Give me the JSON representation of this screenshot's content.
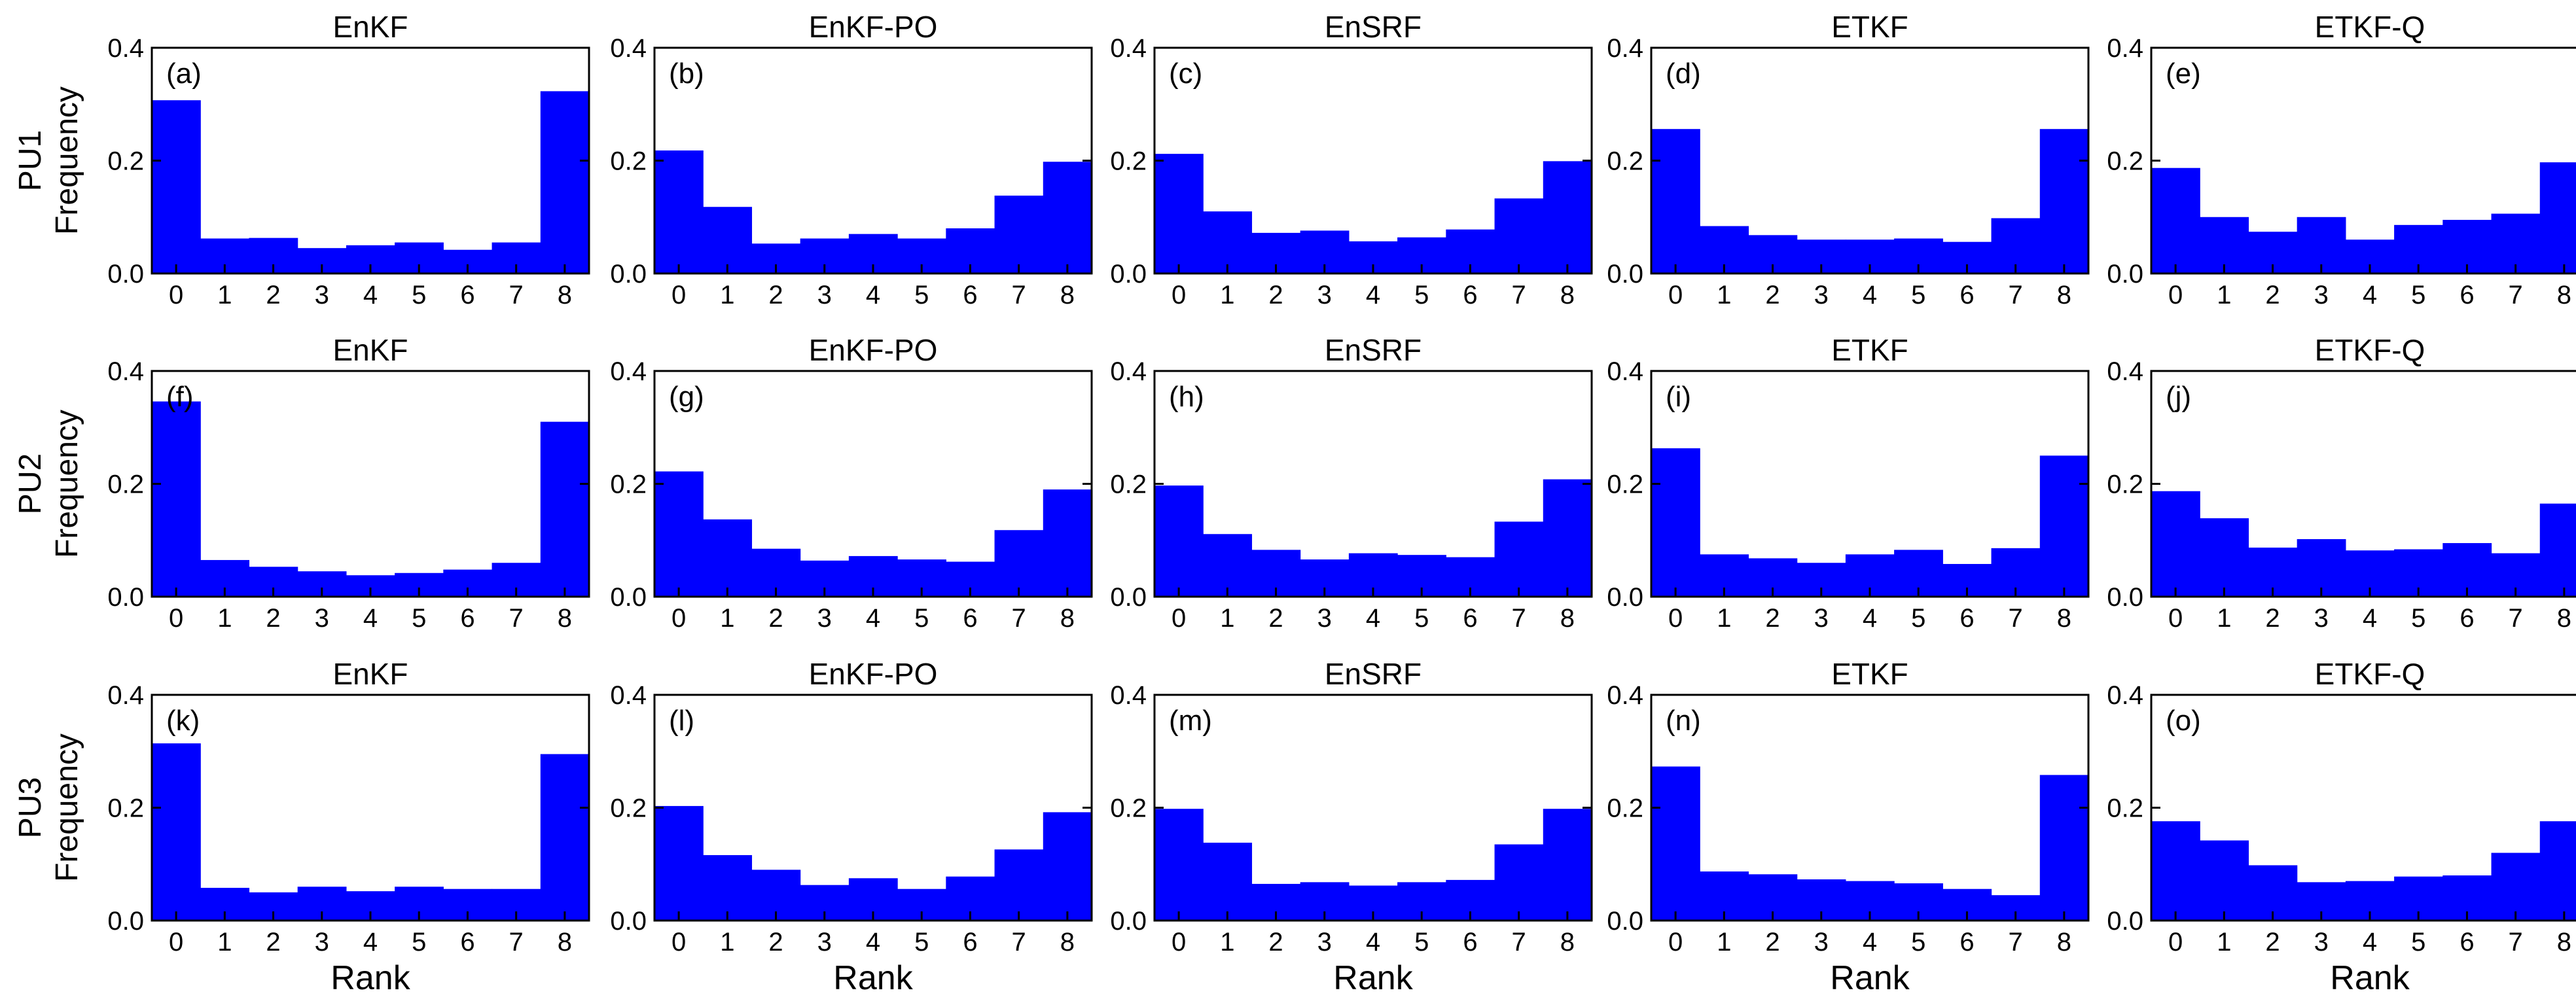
{
  "chart_data": {
    "type": "bar",
    "title": "",
    "method_titles": [
      "EnKF",
      "EnKF-PO",
      "EnSRF",
      "ETKF",
      "ETKF-Q"
    ],
    "row_labels": [
      "PU1",
      "PU2",
      "PU3"
    ],
    "ylabel": "Frequency",
    "xlabel": "Rank",
    "categories": [
      "0",
      "1",
      "2",
      "3",
      "4",
      "5",
      "6",
      "7",
      "8"
    ],
    "ylim": [
      0,
      0.4
    ],
    "yticks": [
      "0.0",
      "0.2",
      "0.4"
    ],
    "bar_color": "#0000ff",
    "panels": [
      {
        "label": "(a)",
        "row": "PU1",
        "method": "EnKF",
        "values": [
          0.307,
          0.062,
          0.063,
          0.045,
          0.05,
          0.055,
          0.042,
          0.055,
          0.323
        ]
      },
      {
        "label": "(b)",
        "row": "PU1",
        "method": "EnKF-PO",
        "values": [
          0.218,
          0.118,
          0.053,
          0.062,
          0.07,
          0.062,
          0.08,
          0.138,
          0.198
        ]
      },
      {
        "label": "(c)",
        "row": "PU1",
        "method": "EnSRF",
        "values": [
          0.212,
          0.11,
          0.072,
          0.076,
          0.057,
          0.064,
          0.078,
          0.133,
          0.199
        ]
      },
      {
        "label": "(d)",
        "row": "PU1",
        "method": "ETKF",
        "values": [
          0.256,
          0.084,
          0.068,
          0.06,
          0.06,
          0.062,
          0.056,
          0.098,
          0.256
        ]
      },
      {
        "label": "(e)",
        "row": "PU1",
        "method": "ETKF-Q",
        "values": [
          0.187,
          0.1,
          0.074,
          0.1,
          0.06,
          0.086,
          0.095,
          0.106,
          0.197
        ]
      },
      {
        "label": "(f)",
        "row": "PU2",
        "method": "EnKF",
        "values": [
          0.346,
          0.065,
          0.053,
          0.045,
          0.038,
          0.042,
          0.048,
          0.06,
          0.31
        ]
      },
      {
        "label": "(g)",
        "row": "PU2",
        "method": "EnKF-PO",
        "values": [
          0.222,
          0.137,
          0.085,
          0.064,
          0.072,
          0.066,
          0.062,
          0.118,
          0.19
        ]
      },
      {
        "label": "(h)",
        "row": "PU2",
        "method": "EnSRF",
        "values": [
          0.197,
          0.111,
          0.083,
          0.066,
          0.077,
          0.074,
          0.07,
          0.133,
          0.208
        ]
      },
      {
        "label": "(i)",
        "row": "PU2",
        "method": "ETKF",
        "values": [
          0.263,
          0.075,
          0.068,
          0.06,
          0.075,
          0.083,
          0.058,
          0.086,
          0.25
        ]
      },
      {
        "label": "(j)",
        "row": "PU2",
        "method": "ETKF-Q",
        "values": [
          0.187,
          0.139,
          0.087,
          0.102,
          0.082,
          0.084,
          0.095,
          0.077,
          0.165
        ]
      },
      {
        "label": "(k)",
        "row": "PU3",
        "method": "EnKF",
        "values": [
          0.314,
          0.058,
          0.05,
          0.06,
          0.052,
          0.06,
          0.056,
          0.056,
          0.295
        ]
      },
      {
        "label": "(l)",
        "row": "PU3",
        "method": "EnKF-PO",
        "values": [
          0.203,
          0.116,
          0.09,
          0.063,
          0.075,
          0.056,
          0.078,
          0.126,
          0.192
        ]
      },
      {
        "label": "(m)",
        "row": "PU3",
        "method": "EnSRF",
        "values": [
          0.198,
          0.138,
          0.065,
          0.068,
          0.062,
          0.068,
          0.072,
          0.135,
          0.198
        ]
      },
      {
        "label": "(n)",
        "row": "PU3",
        "method": "ETKF",
        "values": [
          0.273,
          0.087,
          0.082,
          0.073,
          0.07,
          0.066,
          0.056,
          0.045,
          0.258
        ]
      },
      {
        "label": "(o)",
        "row": "PU3",
        "method": "ETKF-Q",
        "values": [
          0.176,
          0.142,
          0.098,
          0.068,
          0.07,
          0.078,
          0.08,
          0.12,
          0.176
        ]
      }
    ]
  }
}
